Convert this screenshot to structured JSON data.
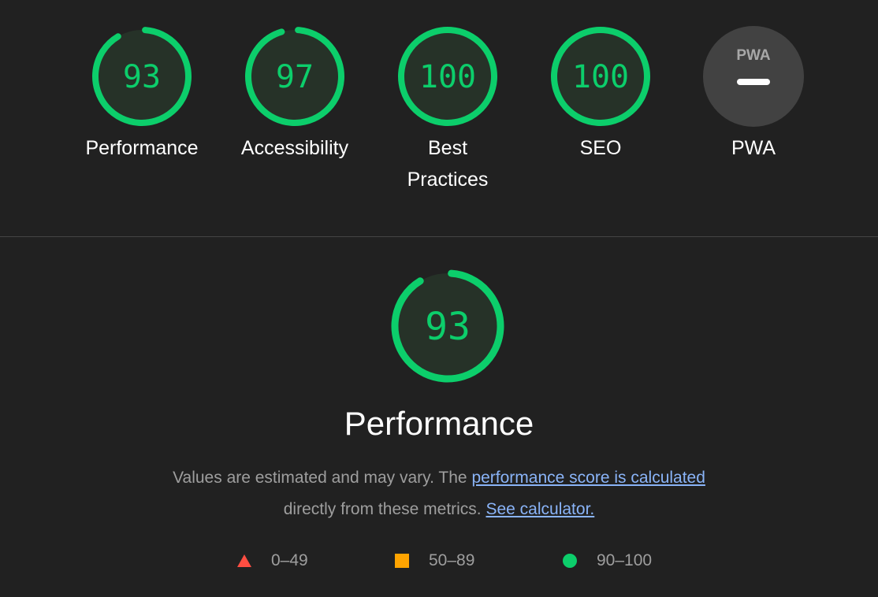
{
  "colors": {
    "pass": "#0cce6b",
    "average": "#ffa400",
    "fail": "#ff4e42",
    "background": "#212121",
    "gauge_fill": "#263228",
    "pwa_bg": "#424242",
    "link": "#8ab4f8"
  },
  "categories": [
    {
      "label": "Performance",
      "score": 93
    },
    {
      "label": "Accessibility",
      "score": 97
    },
    {
      "label": "Best Practices",
      "score": 100
    },
    {
      "label": "SEO",
      "score": 100
    },
    {
      "label": "PWA",
      "badge": "PWA",
      "icon": "pwa-dash-icon"
    }
  ],
  "main": {
    "score": 93,
    "title": "Performance",
    "desc_prefix": "Values are estimated and may vary. The ",
    "desc_link": "performance score is calculated",
    "desc_middle": "directly from these metrics. ",
    "calc_link": "See calculator."
  },
  "legend": [
    {
      "range": "0–49",
      "icon": "triangle-icon"
    },
    {
      "range": "50–89",
      "icon": "square-icon"
    },
    {
      "range": "90–100",
      "icon": "circle-icon"
    }
  ]
}
